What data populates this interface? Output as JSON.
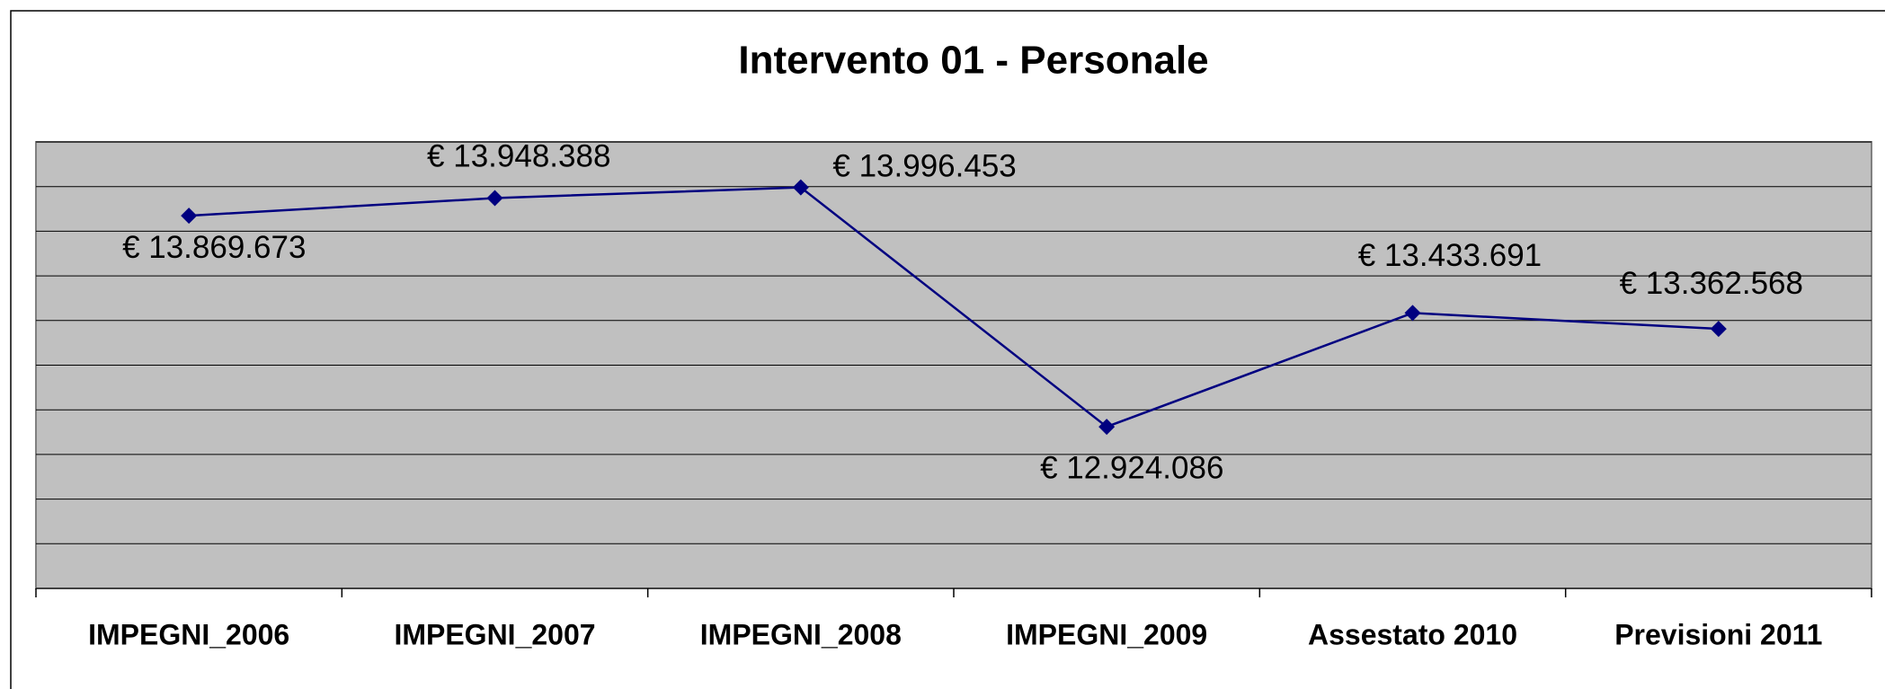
{
  "chart_data": {
    "type": "line",
    "title": "Intervento 01 - Personale",
    "categories": [
      "IMPEGNI_2006",
      "IMPEGNI_2007",
      "IMPEGNI_2008",
      "IMPEGNI_2009",
      "Assestato 2010",
      "Previsioni  2011"
    ],
    "values": [
      13869673,
      13948388,
      13996453,
      12924086,
      13433691,
      13362568
    ],
    "value_labels": [
      "€ 13.869.673",
      "€ 13.948.388",
      "€ 13.996.453",
      "€ 12.924.086",
      "€ 13.433.691",
      "€ 13.362.568"
    ],
    "color": "#000080",
    "ylim": [
      12200000,
      14200000
    ],
    "yticks": [
      12200000,
      12400000,
      12600000,
      12800000,
      13000000,
      13200000,
      13400000,
      13600000,
      13800000,
      14000000,
      14200000
    ],
    "grid": true
  }
}
